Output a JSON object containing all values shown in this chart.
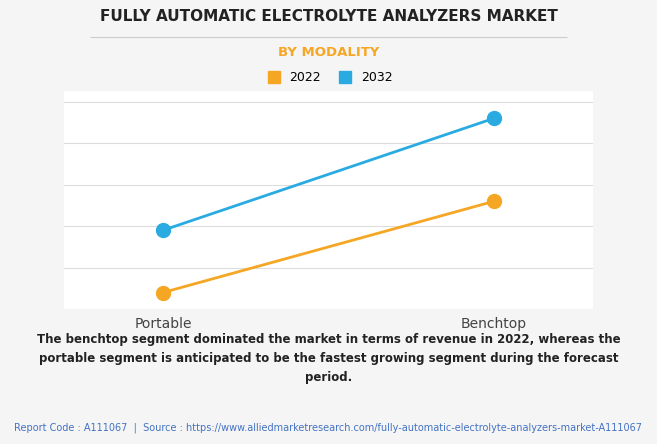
{
  "title": "FULLY AUTOMATIC ELECTROLYTE ANALYZERS MARKET",
  "subtitle": "BY MODALITY",
  "title_color": "#222222",
  "subtitle_color": "#F5A623",
  "divider_color": "#cccccc",
  "categories": [
    "Portable",
    "Benchtop"
  ],
  "series": [
    {
      "label": "2022",
      "color": "#F5A623",
      "values": [
        0.08,
        0.52
      ]
    },
    {
      "label": "2032",
      "color": "#29ABE2",
      "values": [
        0.38,
        0.92
      ]
    }
  ],
  "ylim": [
    0,
    1.05
  ],
  "grid_color": "#dddddd",
  "background_color": "#f5f5f5",
  "plot_background": "#ffffff",
  "annotation_text": "The benchtop segment dominated the market in terms of revenue in 2022, whereas the\nportable segment is anticipated to be the fastest growing segment during the forecast\nperiod.",
  "footer_text": "Report Code : A111067  |  Source : https://www.alliedmarketresearch.com/fully-automatic-electrolyte-analyzers-market-A111067",
  "footer_color": "#4472C4",
  "marker_size": 10,
  "line_width": 2.0
}
